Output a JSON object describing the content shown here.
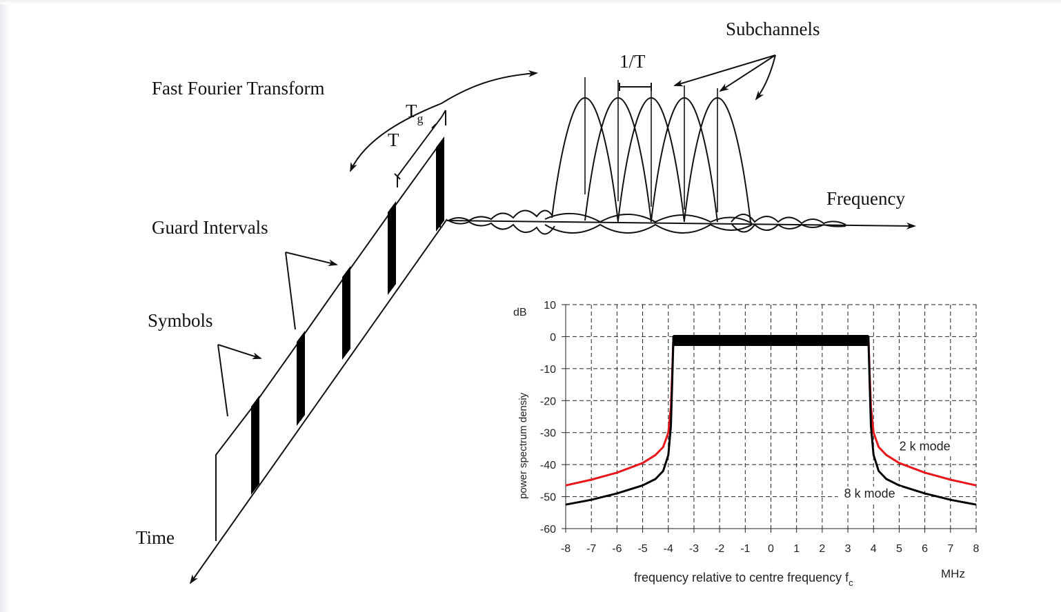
{
  "diagram": {
    "labels": {
      "fft": "Fast Fourier Transform",
      "guard_intervals": "Guard Intervals",
      "symbols": "Symbols",
      "time": "Time",
      "frequency": "Frequency",
      "subchannels": "Subchannels",
      "one_over_t": "1/T",
      "t": "T",
      "tg_main": "T",
      "tg_sub": "g"
    }
  },
  "chart_data": {
    "type": "line",
    "ylabel_unit": "dB",
    "ylabel": "power spectrum densiy",
    "xlabel": "frequency relative to centre frequency f",
    "xlabel_sub": "c",
    "x_unit": "MHz",
    "xlim": [
      -8,
      8
    ],
    "ylim": [
      -60,
      10
    ],
    "x_ticks": [
      "-8",
      "-7",
      "-6",
      "-5",
      "-4",
      "-3",
      "-2",
      "-1",
      "0",
      "1",
      "2",
      "3",
      "4",
      "5",
      "6",
      "7",
      "8"
    ],
    "y_ticks": [
      "10",
      "0",
      "-10",
      "-20",
      "-30",
      "-40",
      "-50",
      "-60"
    ],
    "grid": true,
    "series": [
      {
        "name": "2 k mode",
        "color": "#e8171b",
        "x": [
          -8,
          -7,
          -6,
          -5,
          -4.5,
          -4.2,
          -4.0,
          -3.9,
          -3.85,
          -3.8,
          3.8,
          3.85,
          3.9,
          4.0,
          4.2,
          4.5,
          5,
          6,
          7,
          8
        ],
        "y": [
          -46.5,
          -44.7,
          -42.5,
          -39.5,
          -37,
          -34.5,
          -30,
          -22,
          -12,
          0,
          0,
          -12,
          -22,
          -30,
          -34.5,
          -37,
          -39.5,
          -42.5,
          -44.7,
          -46.5
        ]
      },
      {
        "name": "8 k mode",
        "color": "#000000",
        "x": [
          -8,
          -7,
          -6,
          -5,
          -4.5,
          -4.2,
          -4.0,
          -3.9,
          -3.85,
          -3.8,
          3.8,
          3.85,
          3.9,
          4.0,
          4.2,
          4.5,
          5,
          6,
          7,
          8
        ],
        "y": [
          -52.5,
          -51,
          -49,
          -46.5,
          -44.5,
          -42,
          -37,
          -28,
          -15,
          0,
          0,
          -15,
          -28,
          -37,
          -42,
          -44.5,
          -46.5,
          -49,
          -51,
          -52.5
        ]
      }
    ],
    "passband": {
      "x": [
        -3.8,
        3.8
      ],
      "y": -1.2
    },
    "annotations": [
      {
        "text": "2 k mode",
        "x": 6.0,
        "y": -35.5
      },
      {
        "text": "8 k mode",
        "x": 3.85,
        "y": -50.3
      }
    ]
  }
}
